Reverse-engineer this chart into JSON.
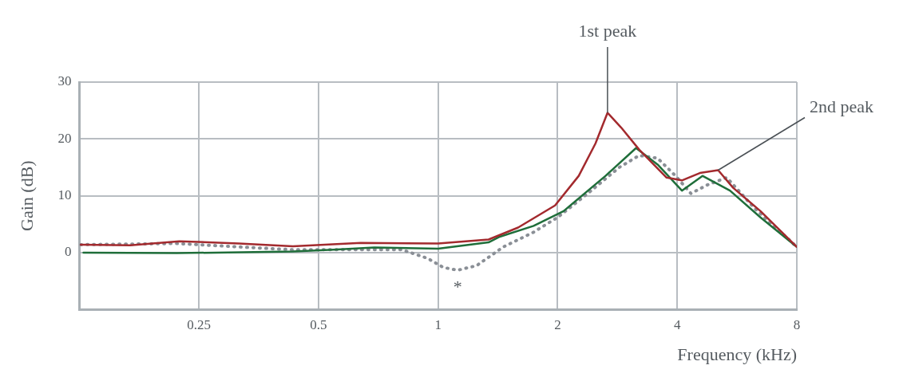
{
  "chart_data": {
    "type": "line",
    "xlabel": "Frequency (kHz)",
    "ylabel": "Gain (dB)",
    "log": "x",
    "xlim": [
      0.125,
      8
    ],
    "xticks": [
      0.25,
      0.5,
      1,
      2,
      4,
      8
    ],
    "ylim": [
      -10,
      30
    ],
    "yticks": [
      {
        "value": -10,
        "label": null
      },
      0,
      10,
      20,
      30
    ],
    "grid": true,
    "legend": false,
    "marker": "none",
    "series": [
      {
        "color": "#a32a2e",
        "line_style": "solid",
        "x": [
          0.126,
          0.168,
          0.223,
          0.315,
          0.431,
          0.639,
          1,
          1.34,
          1.59,
          1.97,
          2.26,
          2.49,
          2.67,
          2.89,
          3.21,
          3.76,
          4.11,
          4.56,
          5.07,
          5.53,
          6.48,
          8
        ],
        "values": [
          1.4,
          1.3,
          2.0,
          1.6,
          1.1,
          1.7,
          1.6,
          2.3,
          4.4,
          8.3,
          13.5,
          19.2,
          24.6,
          22.0,
          18.1,
          13.2,
          12.7,
          14.0,
          14.5,
          11.4,
          7.3,
          1.0
        ]
      },
      {
        "color": "#1f6e3a",
        "line_style": "solid",
        "x": [
          0.128,
          0.22,
          0.431,
          0.546,
          0.691,
          1,
          1.34,
          1.43,
          1.74,
          2.07,
          2.64,
          3.15,
          3.57,
          4.11,
          4.63,
          5.43,
          6.48,
          7.74,
          8
        ],
        "values": [
          0,
          -0.1,
          0.2,
          0.5,
          0.9,
          0.7,
          1.8,
          2.8,
          4.7,
          7.3,
          13.5,
          18.4,
          15.5,
          10.9,
          13.5,
          10.9,
          6.2,
          1.8,
          1.0
        ]
      },
      {
        "color": "#8a8f96",
        "line_style": "dotted",
        "x": [
          0.126,
          0.22,
          0.315,
          0.431,
          0.81,
          0.94,
          1.03,
          1.12,
          1.25,
          1.46,
          1.74,
          2.0,
          2.38,
          2.86,
          3.21,
          3.57,
          3.96,
          4.33,
          4.76,
          5.33,
          6.26,
          8
        ],
        "values": [
          1.4,
          1.6,
          1.0,
          0.5,
          0.5,
          -1.0,
          -2.6,
          -3.1,
          -2.3,
          1.0,
          3.6,
          6.2,
          10.4,
          15.0,
          17.1,
          16.6,
          13.5,
          10.4,
          11.9,
          13.2,
          7.8,
          1.0
        ]
      }
    ],
    "annotations": [
      {
        "text": "1st peak",
        "x": 2.67,
        "y": 24.6
      },
      {
        "text": "2nd peak",
        "x": 5.07,
        "y": 14.5
      },
      {
        "text": "*",
        "x": 1.12,
        "y": -3.1
      }
    ]
  }
}
